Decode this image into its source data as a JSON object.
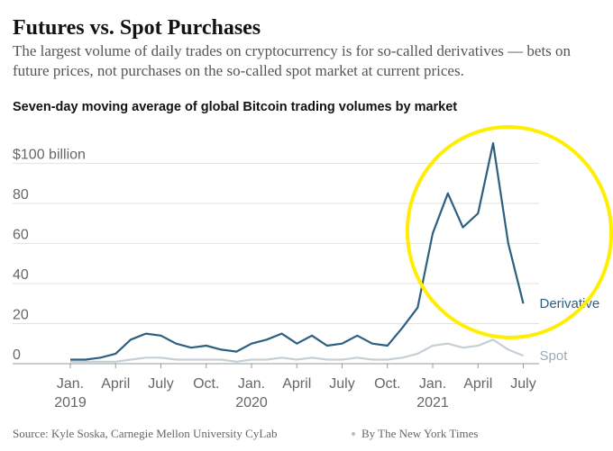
{
  "chart_data": {
    "type": "line",
    "title": "Futures vs. Spot Purchases",
    "subtitle": "The largest volume of daily trades on cryptocurrency is for so-called derivatives — bets on future prices, not purchases on the so-called spot market at current prices.",
    "chart_title": "Seven-day moving average of global Bitcoin trading volumes by market",
    "source": "Source: Kyle Soska, Carnegie Mellon University CyLab",
    "credit": "By The New York Times",
    "x": [
      "2019-01",
      "2019-02",
      "2019-03",
      "2019-04",
      "2019-05",
      "2019-06",
      "2019-07",
      "2019-08",
      "2019-09",
      "2019-10",
      "2019-11",
      "2019-12",
      "2020-01",
      "2020-02",
      "2020-03",
      "2020-04",
      "2020-05",
      "2020-06",
      "2020-07",
      "2020-08",
      "2020-09",
      "2020-10",
      "2020-11",
      "2020-12",
      "2021-01",
      "2021-02",
      "2021-03",
      "2021-04",
      "2021-05",
      "2021-06",
      "2021-07"
    ],
    "series": [
      {
        "name": "Derivative",
        "color": "#2d5f7f",
        "values": [
          2,
          2,
          3,
          5,
          12,
          15,
          14,
          10,
          8,
          9,
          7,
          6,
          10,
          12,
          15,
          10,
          14,
          9,
          10,
          14,
          10,
          9,
          18,
          28,
          65,
          85,
          68,
          75,
          110,
          60,
          30
        ]
      },
      {
        "name": "Spot",
        "color": "#c5d0d6",
        "values": [
          1,
          1,
          1,
          1,
          2,
          3,
          3,
          2,
          2,
          2,
          2,
          1,
          2,
          2,
          3,
          2,
          3,
          2,
          2,
          3,
          2,
          2,
          3,
          5,
          9,
          10,
          8,
          9,
          12,
          7,
          4
        ]
      }
    ],
    "ylim": [
      0,
      115
    ],
    "yticks": [
      0,
      20,
      40,
      60,
      80,
      {
        "value": 100,
        "label": "$100 billion"
      }
    ],
    "xticks": [
      {
        "value": "2019-01",
        "label": "Jan.",
        "sublabel": "2019"
      },
      {
        "value": "2019-04",
        "label": "April"
      },
      {
        "value": "2019-07",
        "label": "July"
      },
      {
        "value": "2019-10",
        "label": "Oct."
      },
      {
        "value": "2020-01",
        "label": "Jan.",
        "sublabel": "2020"
      },
      {
        "value": "2020-04",
        "label": "April"
      },
      {
        "value": "2020-07",
        "label": "July"
      },
      {
        "value": "2020-10",
        "label": "Oct."
      },
      {
        "value": "2021-01",
        "label": "Jan.",
        "sublabel": "2021"
      },
      {
        "value": "2021-04",
        "label": "April"
      },
      {
        "value": "2021-07",
        "label": "July"
      }
    ],
    "grid": true
  }
}
